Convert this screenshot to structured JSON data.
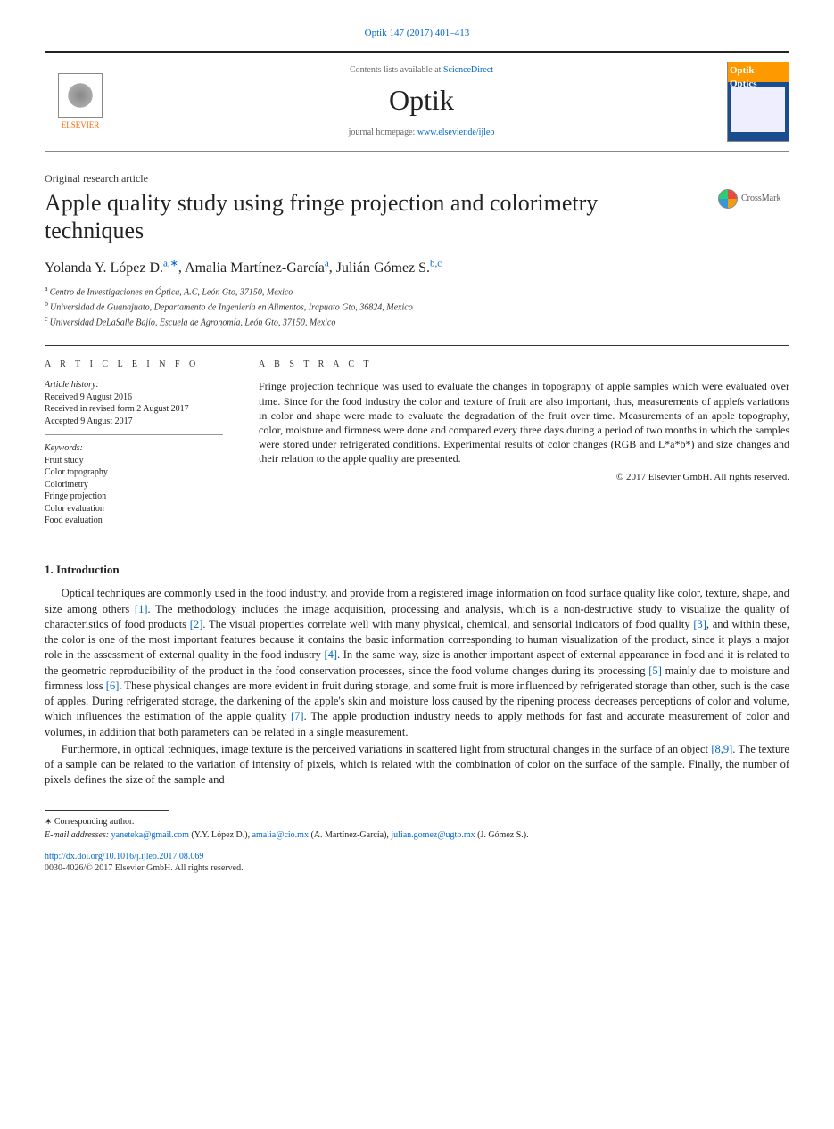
{
  "citation": {
    "text": "Optik 147 (2017) 401–413",
    "link_color": "#0066cc"
  },
  "header": {
    "contents_prefix": "Contents lists available at ",
    "contents_link": "ScienceDirect",
    "journal": "Optik",
    "homepage_prefix": "journal homepage: ",
    "homepage_link": "www.elsevier.de/ijleo",
    "publisher": "ELSEVIER",
    "cover_title_top": "Optik",
    "cover_title_bottom": "Optics"
  },
  "article_type": "Original research article",
  "title": "Apple quality study using fringe projection and colorimetry techniques",
  "crossmark_label": "CrossMark",
  "authors": [
    {
      "name": "Yolanda Y. López D.",
      "aff": "a",
      "corr": true
    },
    {
      "name": "Amalia Martínez-García",
      "aff": "a",
      "corr": false
    },
    {
      "name": "Julián Gómez S.",
      "aff": "b,c",
      "corr": false
    }
  ],
  "affiliations": [
    {
      "sup": "a",
      "text": "Centro de Investigaciones en Óptica, A.C, León Gto, 37150, Mexico"
    },
    {
      "sup": "b",
      "text": "Universidad de Guanajuato, Departamento de Ingeniería en Alimentos, Irapuato Gto, 36824, Mexico"
    },
    {
      "sup": "c",
      "text": "Universidad DeLaSalle Bajío, Escuela de Agronomía, León Gto, 37150, Mexico"
    }
  ],
  "info_label": "a r t i c l e   i n f o",
  "abstract_label": "a b s t r a c t",
  "history": {
    "label": "Article history:",
    "lines": [
      "Received 9 August 2016",
      "Received in revised form 2 August 2017",
      "Accepted 9 August 2017"
    ]
  },
  "keywords": {
    "label": "Keywords:",
    "items": [
      "Fruit study",
      "Color topography",
      "Colorimetry",
      "Fringe projection",
      "Color evaluation",
      "Food evaluation"
    ]
  },
  "abstract": "Fringe projection technique was used to evaluate the changes in topography of apple samples which were evaluated over time. Since for the food industry the color and texture of fruit are also important, thus, measurements of appleſs variations in color and shape were made to evaluate the degradation of the fruit over time. Measurements of an apple topography, color, moisture and firmness were done and compared every three days during a period of two months in which the samples were stored under refrigerated conditions. Experimental results of color changes (RGB and L*a*b*) and size changes and their relation to the apple quality are presented.",
  "copyright": "© 2017 Elsevier GmbH. All rights reserved.",
  "introduction": {
    "heading": "1.  Introduction",
    "p1_a": "Optical techniques are commonly used in the food industry, and provide from a registered image information on food surface quality like color, texture, shape, and size among others ",
    "ref1": "[1]",
    "p1_b": ". The methodology includes the image acquisition, processing and analysis, which is a non-destructive study to visualize the quality of characteristics of food products ",
    "ref2": "[2]",
    "p1_c": ". The visual properties correlate well with many physical, chemical, and sensorial indicators of food quality ",
    "ref3": "[3]",
    "p1_d": ", and within these, the color is one of the most important features because it contains the basic information corresponding to human visualization of the product, since it plays a major role in the assessment of external quality in the food industry ",
    "ref4": "[4]",
    "p1_e": ". In the same way, size is another important aspect of external appearance in food and it is related to the geometric reproducibility of the product in the food conservation processes, since the food volume changes during its processing ",
    "ref5": "[5]",
    "p1_f": " mainly due to moisture and firmness loss ",
    "ref6": "[6]",
    "p1_g": ". These physical changes are more evident in fruit during storage, and some fruit is more influenced by refrigerated storage than other, such is the case of apples. During refrigerated storage, the darkening of the apple's skin and moisture loss caused by the ripening process decreases perceptions of color and volume, which influences the estimation of the apple quality ",
    "ref7": "[7]",
    "p1_h": ". The apple production industry needs to apply methods for fast and accurate measurement of color and volumes, in addition that both parameters can be related in a single measurement.",
    "p2_a": "Furthermore, in optical techniques, image texture is the perceived variations in scattered light from structural changes in the surface of an object ",
    "ref89": "[8,9]",
    "p2_b": ". The texture of a sample can be related to the variation of intensity of pixels, which is related with the combination of color on the surface of the sample. Finally, the number of pixels defines the size of the sample and"
  },
  "footer": {
    "corr_label": "∗ Corresponding author.",
    "email_label": "E-mail addresses:",
    "emails": [
      {
        "addr": "yaneteka@gmail.com",
        "who": "(Y.Y. López D.)"
      },
      {
        "addr": "amalia@cio.mx",
        "who": "(A. Martínez-García)"
      },
      {
        "addr": "julian.gomez@ugto.mx",
        "who": "(J. Gómez S.)."
      }
    ],
    "doi": "http://dx.doi.org/10.1016/j.ijleo.2017.08.069",
    "issn": "0030-4026/© 2017 Elsevier GmbH. All rights reserved."
  },
  "colors": {
    "link": "#0066cc",
    "text": "#222222",
    "orange": "#ff6600"
  }
}
